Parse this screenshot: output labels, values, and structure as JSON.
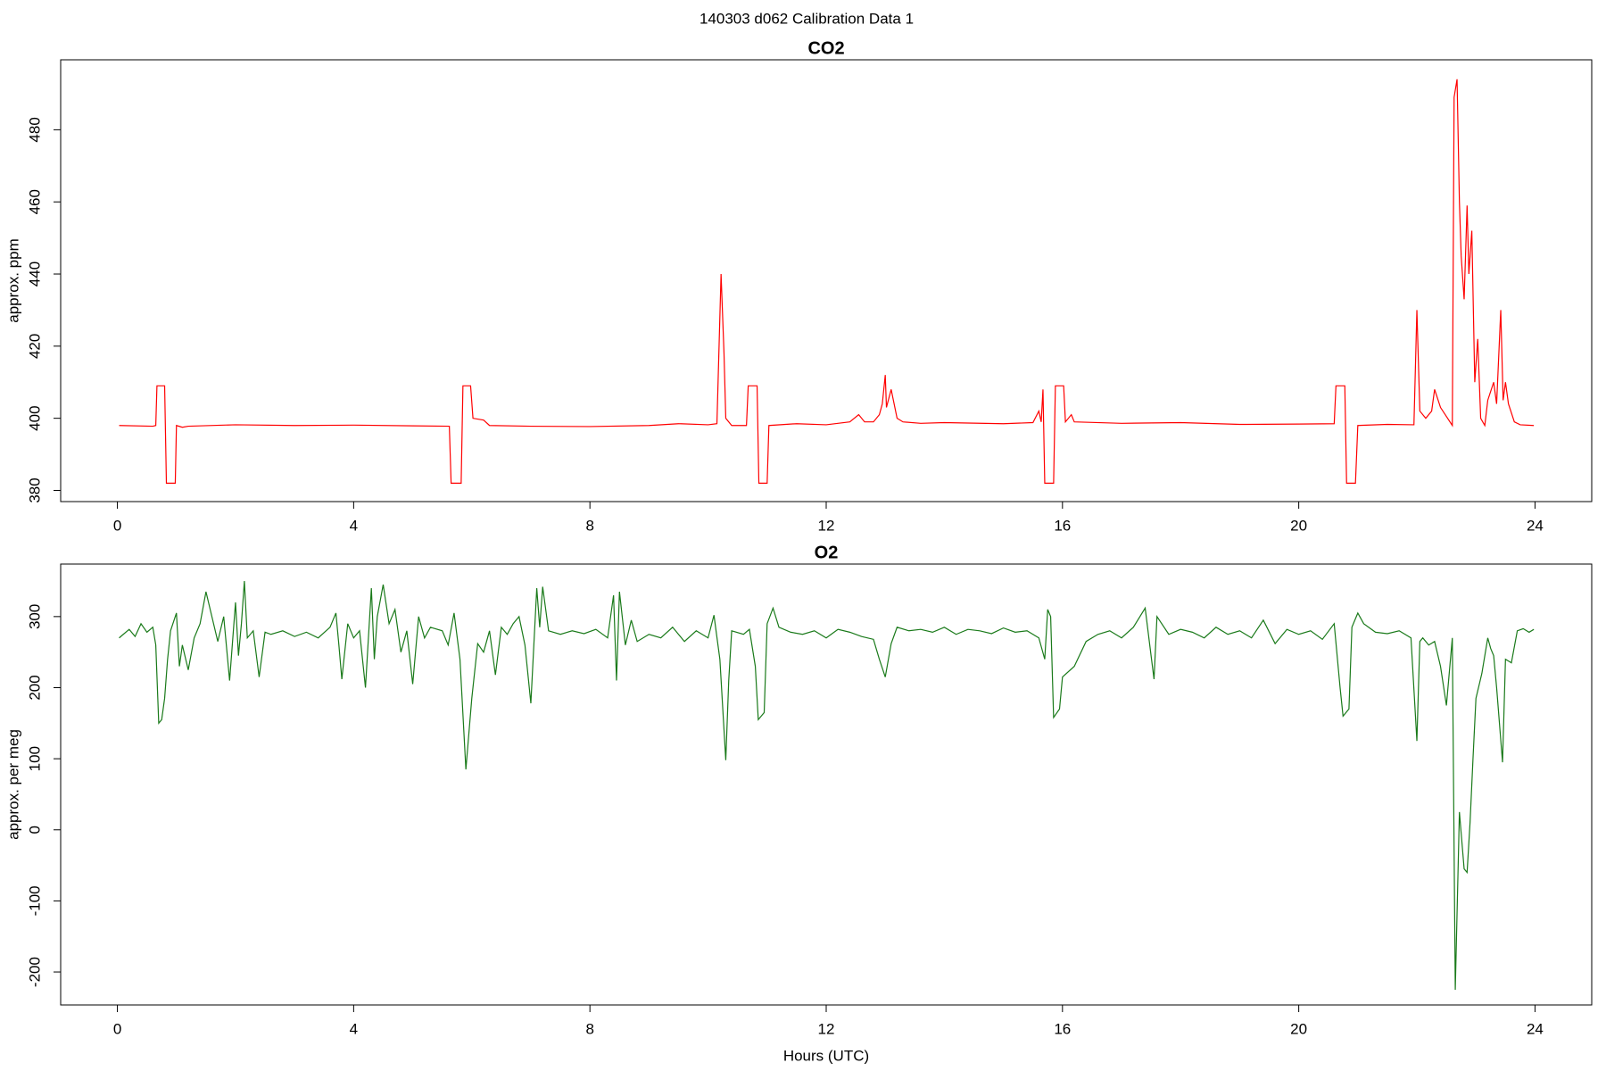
{
  "title": "140303   d062   Calibration Data 1",
  "chart_data": [
    {
      "type": "line",
      "title": "CO2",
      "ylabel": "approx. ppm",
      "color": "#ff0000",
      "x": [
        0.03,
        0.6,
        0.65,
        0.67,
        0.8,
        0.83,
        0.98,
        1.0,
        1.1,
        1.2,
        2.0,
        3.0,
        4.0,
        5.0,
        5.62,
        5.65,
        5.82,
        5.85,
        5.98,
        6.02,
        6.2,
        6.3,
        7.0,
        8.0,
        9.0,
        9.5,
        10.0,
        10.15,
        10.22,
        10.27,
        10.3,
        10.4,
        10.6,
        10.65,
        10.68,
        10.83,
        10.86,
        11.0,
        11.03,
        11.5,
        12.0,
        12.4,
        12.55,
        12.65,
        12.8,
        12.9,
        12.95,
        13.0,
        13.02,
        13.1,
        13.2,
        13.3,
        13.6,
        14.0,
        15.0,
        15.5,
        15.6,
        15.64,
        15.67,
        15.7,
        15.85,
        15.88,
        16.02,
        16.05,
        16.15,
        16.2,
        17.0,
        18.0,
        19.0,
        20.0,
        20.6,
        20.63,
        20.78,
        20.81,
        20.96,
        21.0,
        21.5,
        21.95,
        22.0,
        22.05,
        22.15,
        22.25,
        22.3,
        22.4,
        22.6,
        22.63,
        22.68,
        22.72,
        22.75,
        22.8,
        22.85,
        22.88,
        22.93,
        22.98,
        23.03,
        23.08,
        23.15,
        23.2,
        23.3,
        23.35,
        23.42,
        23.46,
        23.5,
        23.55,
        23.65,
        23.75,
        23.98
      ],
      "values": [
        398,
        397.8,
        398,
        409,
        409,
        382,
        382,
        398,
        397.5,
        397.8,
        398.2,
        398,
        398.1,
        397.9,
        397.8,
        382,
        382,
        409,
        409,
        400,
        399.5,
        398,
        397.8,
        397.7,
        398,
        398.5,
        398.2,
        398.5,
        440,
        418,
        400,
        398,
        398,
        398,
        409,
        409,
        382,
        382,
        398,
        398.5,
        398.2,
        399,
        401,
        399,
        399,
        401,
        404,
        412,
        403,
        408,
        400,
        399,
        398.6,
        398.8,
        398.5,
        398.8,
        402,
        399,
        408,
        382,
        382,
        409,
        409,
        399,
        401,
        399,
        398.6,
        398.8,
        398.3,
        398.4,
        398.5,
        409,
        409,
        382,
        382,
        398,
        398.3,
        398.2,
        430,
        402,
        400,
        402,
        408,
        403,
        398,
        489,
        494,
        460,
        445,
        433,
        459,
        440,
        452,
        410,
        422,
        400,
        398,
        405,
        410,
        404,
        430,
        405,
        410,
        404,
        399,
        398.2,
        398
      ],
      "xlim": [
        -0.96,
        24.96
      ],
      "xticks": [
        0,
        4,
        8,
        12,
        16,
        20,
        24
      ],
      "ylim": [
        376.9,
        499.4
      ],
      "yticks": [
        380,
        400,
        420,
        440,
        460,
        480
      ]
    },
    {
      "type": "line",
      "title": "O2",
      "ylabel": "approx. per meg",
      "xlabel": "Hours (UTC)",
      "color": "#1a7a1a",
      "x": [
        0.03,
        0.1,
        0.2,
        0.3,
        0.4,
        0.5,
        0.6,
        0.65,
        0.7,
        0.75,
        0.8,
        0.85,
        0.9,
        1.0,
        1.05,
        1.1,
        1.2,
        1.3,
        1.4,
        1.5,
        1.6,
        1.7,
        1.8,
        1.9,
        2.0,
        2.05,
        2.1,
        2.15,
        2.2,
        2.3,
        2.4,
        2.5,
        2.6,
        2.8,
        3.0,
        3.2,
        3.4,
        3.6,
        3.7,
        3.75,
        3.8,
        3.9,
        4.0,
        4.1,
        4.2,
        4.3,
        4.35,
        4.4,
        4.5,
        4.6,
        4.7,
        4.8,
        4.9,
        5.0,
        5.1,
        5.2,
        5.3,
        5.5,
        5.6,
        5.7,
        5.8,
        5.9,
        6.0,
        6.1,
        6.2,
        6.3,
        6.4,
        6.5,
        6.6,
        6.7,
        6.8,
        6.9,
        7.0,
        7.1,
        7.15,
        7.2,
        7.3,
        7.5,
        7.7,
        7.9,
        8.1,
        8.3,
        8.4,
        8.45,
        8.5,
        8.6,
        8.7,
        8.8,
        9.0,
        9.2,
        9.4,
        9.6,
        9.8,
        10.0,
        10.1,
        10.2,
        10.3,
        10.35,
        10.4,
        10.6,
        10.7,
        10.8,
        10.85,
        10.95,
        11.0,
        11.1,
        11.2,
        11.4,
        11.6,
        11.8,
        12.0,
        12.2,
        12.4,
        12.6,
        12.8,
        12.9,
        13.0,
        13.1,
        13.2,
        13.4,
        13.6,
        13.8,
        14.0,
        14.2,
        14.4,
        14.6,
        14.8,
        15.0,
        15.2,
        15.4,
        15.6,
        15.7,
        15.75,
        15.8,
        15.85,
        15.95,
        16.0,
        16.2,
        16.4,
        16.6,
        16.8,
        17.0,
        17.2,
        17.4,
        17.5,
        17.55,
        17.6,
        17.8,
        18.0,
        18.2,
        18.4,
        18.6,
        18.8,
        19.0,
        19.2,
        19.4,
        19.6,
        19.8,
        20.0,
        20.2,
        20.4,
        20.6,
        20.7,
        20.75,
        20.85,
        20.9,
        21.0,
        21.1,
        21.3,
        21.5,
        21.7,
        21.9,
        22.0,
        22.05,
        22.1,
        22.2,
        22.3,
        22.4,
        22.5,
        22.6,
        22.65,
        22.72,
        22.8,
        22.85,
        22.9,
        22.95,
        23.0,
        23.1,
        23.2,
        23.25,
        23.3,
        23.35,
        23.45,
        23.5,
        23.6,
        23.7,
        23.8,
        23.9,
        23.98
      ],
      "values": [
        270,
        275,
        282,
        272,
        290,
        278,
        285,
        260,
        150,
        155,
        185,
        240,
        280,
        305,
        230,
        260,
        225,
        270,
        290,
        335,
        300,
        265,
        300,
        210,
        320,
        245,
        290,
        350,
        270,
        280,
        215,
        278,
        275,
        280,
        272,
        278,
        270,
        285,
        305,
        260,
        212,
        290,
        270,
        280,
        200,
        340,
        240,
        300,
        345,
        290,
        310,
        250,
        280,
        205,
        300,
        270,
        285,
        280,
        260,
        305,
        240,
        85,
        185,
        262,
        250,
        280,
        218,
        285,
        275,
        290,
        300,
        260,
        178,
        340,
        285,
        342,
        280,
        275,
        280,
        276,
        282,
        270,
        330,
        210,
        335,
        260,
        295,
        265,
        275,
        270,
        285,
        265,
        280,
        270,
        302,
        240,
        98,
        210,
        280,
        275,
        282,
        230,
        155,
        165,
        290,
        312,
        285,
        278,
        275,
        280,
        270,
        282,
        278,
        272,
        268,
        240,
        215,
        262,
        285,
        280,
        282,
        278,
        285,
        275,
        282,
        280,
        276,
        284,
        278,
        280,
        270,
        240,
        310,
        300,
        158,
        170,
        215,
        230,
        265,
        275,
        280,
        270,
        285,
        312,
        245,
        212,
        300,
        275,
        282,
        278,
        270,
        285,
        275,
        280,
        270,
        295,
        262,
        282,
        275,
        280,
        268,
        290,
        200,
        160,
        170,
        285,
        305,
        290,
        278,
        276,
        280,
        270,
        125,
        265,
        270,
        260,
        265,
        230,
        175,
        270,
        -225,
        25,
        -55,
        -60,
        10,
        100,
        185,
        220,
        270,
        255,
        245,
        200,
        95,
        240,
        235,
        280,
        283,
        278,
        282
      ],
      "xlim": [
        -0.96,
        24.96
      ],
      "xticks": [
        0,
        4,
        8,
        12,
        16,
        20,
        24
      ],
      "ylim": [
        -246.4,
        373.9
      ],
      "yticks": [
        -200,
        -100,
        0,
        100,
        200,
        300
      ]
    }
  ]
}
